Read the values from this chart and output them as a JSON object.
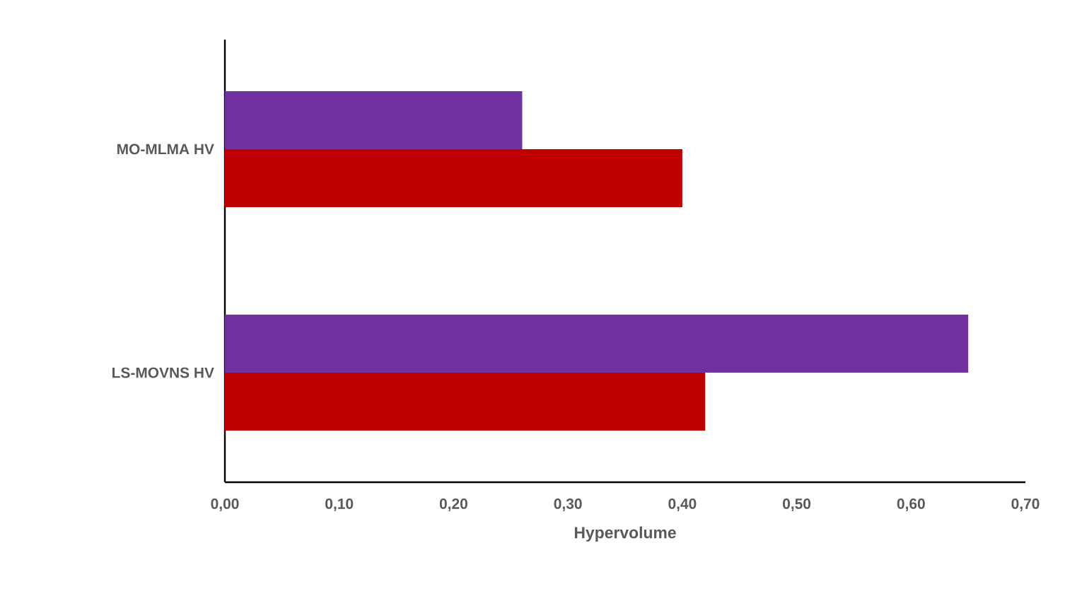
{
  "chart_data": {
    "type": "bar",
    "orientation": "horizontal",
    "xlabel": "Hypervolume",
    "categories": [
      "MO-MLMA HV",
      "LS-MOVNS HV"
    ],
    "series": [
      {
        "color": "#7030a0",
        "values": [
          0.26,
          0.65
        ]
      },
      {
        "color": "#c00000",
        "values": [
          0.4,
          0.42
        ]
      }
    ],
    "xlim": [
      0,
      0.7
    ],
    "xticks": [
      {
        "value": 0,
        "label": "0,00"
      },
      {
        "value": 0.1,
        "label": "0,10"
      },
      {
        "value": 0.2,
        "label": "0,20"
      },
      {
        "value": 0.3,
        "label": "0,30"
      },
      {
        "value": 0.4,
        "label": "0,40"
      },
      {
        "value": 0.5,
        "label": "0,50"
      },
      {
        "value": 0.6,
        "label": "0,60"
      },
      {
        "value": 0.7,
        "label": "0,70"
      }
    ],
    "grid": false
  }
}
